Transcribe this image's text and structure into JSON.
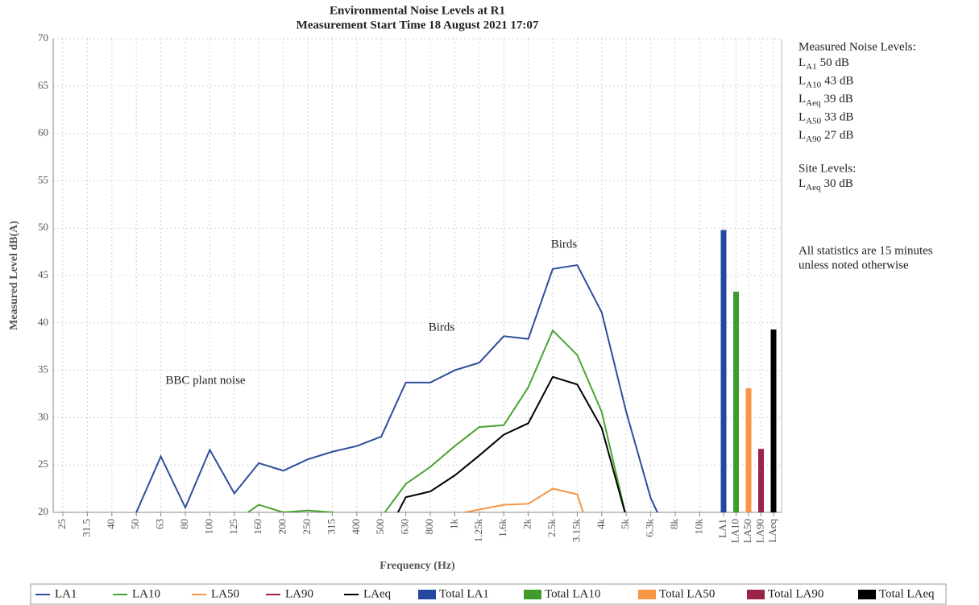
{
  "chart_data": {
    "type": "line",
    "title": "Environmental Noise Levels at R1",
    "subtitle": "Measurement Start Time 18 August 2021 17:07",
    "x_label": "Frequency (Hz)",
    "y_label": "Measured Level dB(A)",
    "ylim": [
      20,
      70
    ],
    "yticks": [
      20,
      25,
      30,
      35,
      40,
      45,
      50,
      55,
      60,
      65,
      70
    ],
    "grid": true,
    "legend": "bottom",
    "categories": [
      "25",
      "31.5",
      "40",
      "50",
      "63",
      "80",
      "100",
      "125",
      "160",
      "200",
      "250",
      "315",
      "400",
      "500",
      "630",
      "800",
      "1k",
      "1.25k",
      "1.6k",
      "2k",
      "2.5k",
      "3.15k",
      "4k",
      "5k",
      "6.3k",
      "8k",
      "10k"
    ],
    "series": [
      {
        "name": "LA1",
        "color": "#2e4d9c",
        "values": [
          null,
          null,
          null,
          20,
          25.9,
          20.5,
          26.6,
          22,
          25.2,
          24.4,
          25.6,
          26.4,
          27,
          28,
          33.7,
          33.7,
          35,
          35.8,
          38.6,
          38.3,
          45.7,
          46.1,
          41.1,
          30.6,
          21.5,
          16,
          null
        ]
      },
      {
        "name": "LA10",
        "color": "#4aa332",
        "values": [
          null,
          null,
          null,
          null,
          null,
          null,
          null,
          19,
          20.8,
          20,
          20.2,
          20,
          19.5,
          19.5,
          23,
          24.8,
          27,
          29,
          29.2,
          33.2,
          39.2,
          36.6,
          30.6,
          19.5,
          null,
          null,
          null
        ]
      },
      {
        "name": "LA50",
        "color": "#f79646",
        "values": [
          null,
          null,
          null,
          null,
          null,
          null,
          null,
          null,
          null,
          null,
          null,
          null,
          null,
          null,
          null,
          null,
          19.8,
          20.3,
          20.8,
          20.9,
          22.5,
          21.9,
          14,
          null,
          null,
          null,
          null
        ]
      },
      {
        "name": "LA90",
        "color": "#9b2347",
        "values": [
          null,
          null,
          null,
          null,
          null,
          null,
          null,
          null,
          null,
          null,
          null,
          null,
          null,
          null,
          null,
          null,
          null,
          null,
          null,
          null,
          null,
          null,
          null,
          null,
          null,
          null,
          null
        ]
      },
      {
        "name": "LAeq",
        "color": "#000000",
        "values": [
          null,
          null,
          null,
          null,
          null,
          null,
          null,
          null,
          null,
          null,
          null,
          null,
          null,
          16.6,
          21.6,
          22.2,
          23.9,
          26,
          28.2,
          29.4,
          34.3,
          33.5,
          28.9,
          19.5,
          null,
          null,
          null
        ]
      }
    ],
    "bars": {
      "type": "bar",
      "categories": [
        "LA1",
        "LA10",
        "LA50",
        "LA90",
        "LAeq"
      ],
      "names": [
        "Total LA1",
        "Total LA10",
        "Total LA50",
        "Total LA90",
        "Total LAeq"
      ],
      "colors": [
        "#2447a0",
        "#3f9c2a",
        "#f79646",
        "#9b2347",
        "#000000"
      ],
      "values": [
        49.8,
        43.3,
        33.1,
        26.7,
        39.3
      ]
    },
    "annotations": [
      "BBC plant noise",
      "Birds",
      "Birds"
    ],
    "notes": {
      "measured": {
        "heading": "Measured Noise Levels:",
        "items": [
          {
            "symbol": "L",
            "subscript": "A1",
            "value": "50 dB"
          },
          {
            "symbol": "L",
            "subscript": "A10",
            "value": "43 dB"
          },
          {
            "symbol": "L",
            "subscript": "Aeq",
            "value": "39 dB"
          },
          {
            "symbol": "L",
            "subscript": "A50",
            "value": "33 dB"
          },
          {
            "symbol": "L",
            "subscript": "A90",
            "value": "27 dB"
          }
        ]
      },
      "site": {
        "heading": "Site Levels:",
        "items": [
          {
            "symbol": "L",
            "subscript": "Aeq",
            "value": "30 dB"
          }
        ]
      },
      "footnote": [
        "All statistics are 15 minutes",
        "unless noted otherwise"
      ]
    }
  }
}
